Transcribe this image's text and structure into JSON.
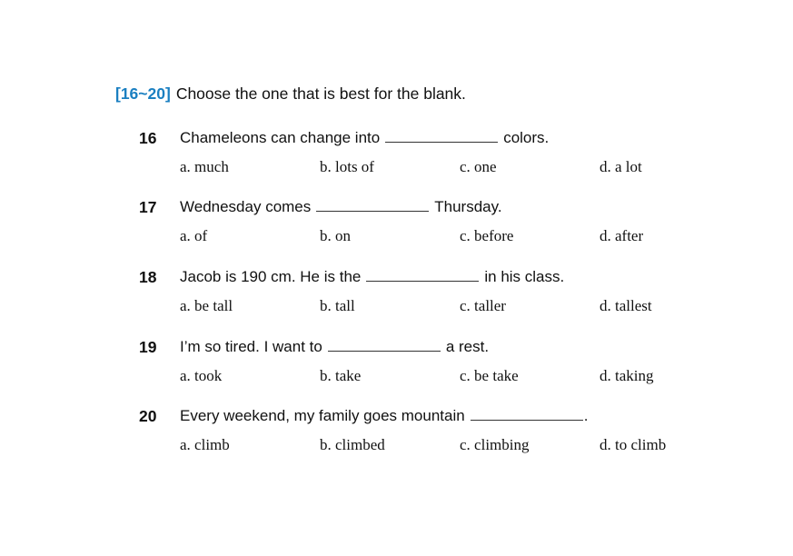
{
  "header": {
    "range": "[16~20]",
    "instruction": "Choose the one that is best for the blank."
  },
  "questions": [
    {
      "number": "16",
      "before": "Chameleons can change into",
      "after": "colors.",
      "options": [
        "a. much",
        "b. lots of",
        "c. one",
        "d. a lot"
      ]
    },
    {
      "number": "17",
      "before": "Wednesday comes",
      "after": "Thursday.",
      "options": [
        "a. of",
        "b. on",
        "c. before",
        "d. after"
      ]
    },
    {
      "number": "18",
      "before": "Jacob is 190 cm. He is the",
      "after": "in his class.",
      "options": [
        "a. be tall",
        "b. tall",
        "c. taller",
        "d. tallest"
      ]
    },
    {
      "number": "19",
      "before": "I’m so tired. I want to",
      "after": "a rest.",
      "options": [
        "a. took",
        "b. take",
        "c. be take",
        "d. taking"
      ]
    },
    {
      "number": "20",
      "before": "Every weekend, my family goes mountain",
      "after": ".",
      "options": [
        "a. climb",
        "b. climbed",
        "c. climbing",
        "d. to climb"
      ]
    }
  ]
}
